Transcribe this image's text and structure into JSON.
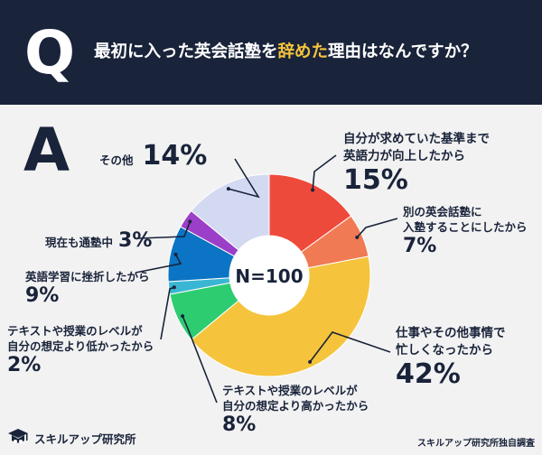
{
  "header": {
    "q_letter": "Q",
    "question_pre": "最初に入った英会話塾を",
    "question_highlight": "辞めた",
    "question_post": "理由はなんですか？"
  },
  "a_letter": "A",
  "colors": {
    "header_bg": "#19233a",
    "highlight": "#f5c43c",
    "text": "#19233a"
  },
  "chart_data": {
    "type": "pie",
    "center_label": "N=100",
    "slices": [
      {
        "label": "自分が求めていた基準まで英語力が向上したから",
        "value": 15,
        "pct": "15%",
        "color": "#ee4a3b"
      },
      {
        "label": "別の英会話塾に入塾することにしたから",
        "value": 7,
        "pct": "7%",
        "color": "#f07a53"
      },
      {
        "label": "仕事やその他事情で忙しくなったから",
        "value": 42,
        "pct": "42%",
        "color": "#f5c43c"
      },
      {
        "label": "テキストや授業のレベルが自分の想定より高かったから",
        "value": 8,
        "pct": "8%",
        "color": "#2ecc71"
      },
      {
        "label": "テキストや授業のレベルが自分の想定より低かったから",
        "value": 2,
        "pct": "2%",
        "color": "#3ab6d4"
      },
      {
        "label": "英語学習に挫折したから",
        "value": 9,
        "pct": "9%",
        "color": "#0b74c4"
      },
      {
        "label": "現在も通塾中",
        "value": 3,
        "pct": "3%",
        "color": "#9b3fc8"
      },
      {
        "label": "その他",
        "value": 14,
        "pct": "14%",
        "color": "#d4d9f2"
      }
    ]
  },
  "labels": {
    "s0_line1": "自分が求めていた基準まで",
    "s0_line2": "英語力が向上したから",
    "s1_line1": "別の英会話塾に",
    "s1_line2": "入塾することにしたから",
    "s2_line1": "仕事やその他事情で",
    "s2_line2": "忙しくなったから",
    "s3_line1": "テキストや授業のレベルが",
    "s3_line2": "自分の想定より高かったから",
    "s4_line1": "テキストや授業のレベルが",
    "s4_line2": "自分の想定より低かったから",
    "s5_line1": "英語学習に挫折したから",
    "s6_line1": "現在も通塾中",
    "s7_line1": "その他"
  },
  "footer": {
    "brand": "スキルアップ研究所",
    "source": "スキルアップ研究所独自調査"
  }
}
